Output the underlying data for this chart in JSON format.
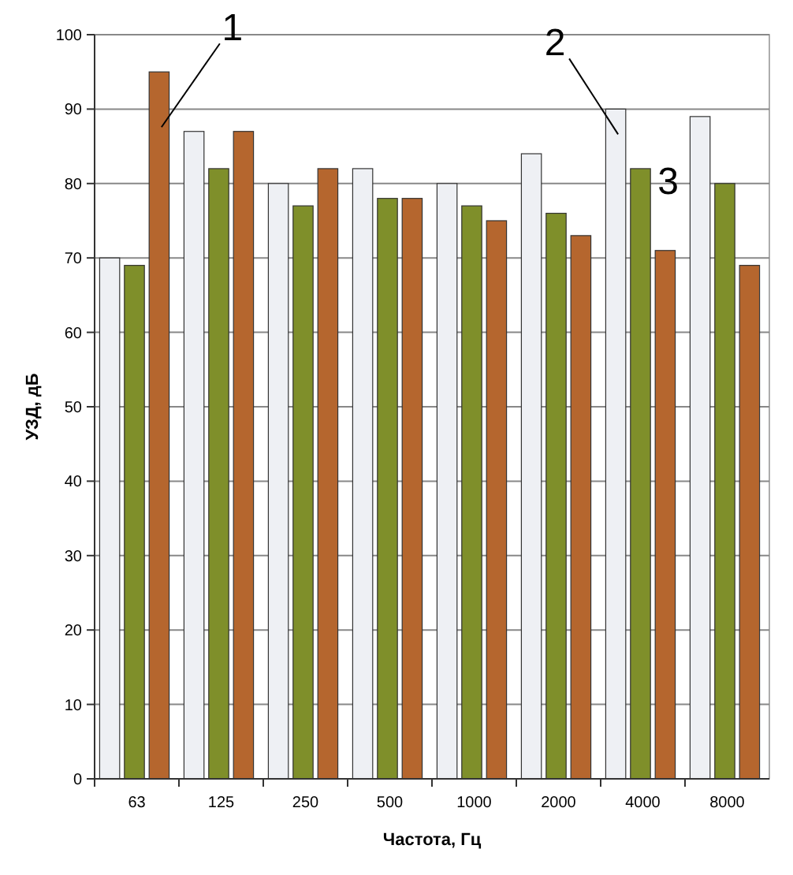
{
  "chart_data": {
    "type": "bar",
    "xlabel": "Частота, Гц",
    "ylabel": "УЗД, дБ",
    "categories": [
      "63",
      "125",
      "250",
      "500",
      "1000",
      "2000",
      "4000",
      "8000"
    ],
    "series": [
      {
        "name": "2",
        "color": "#eef0f4",
        "values": [
          70,
          87,
          80,
          82,
          80,
          84,
          90,
          89
        ]
      },
      {
        "name": "3",
        "color": "#7f8f2a",
        "values": [
          69,
          82,
          77,
          78,
          77,
          76,
          82,
          80
        ]
      },
      {
        "name": "1",
        "color": "#b5662e",
        "values": [
          95,
          87,
          82,
          78,
          75,
          73,
          71,
          69
        ]
      }
    ],
    "ylim": [
      0,
      100
    ],
    "yticks": [
      0,
      10,
      20,
      30,
      40,
      50,
      60,
      70,
      80,
      90,
      100
    ],
    "grid": "y"
  }
}
